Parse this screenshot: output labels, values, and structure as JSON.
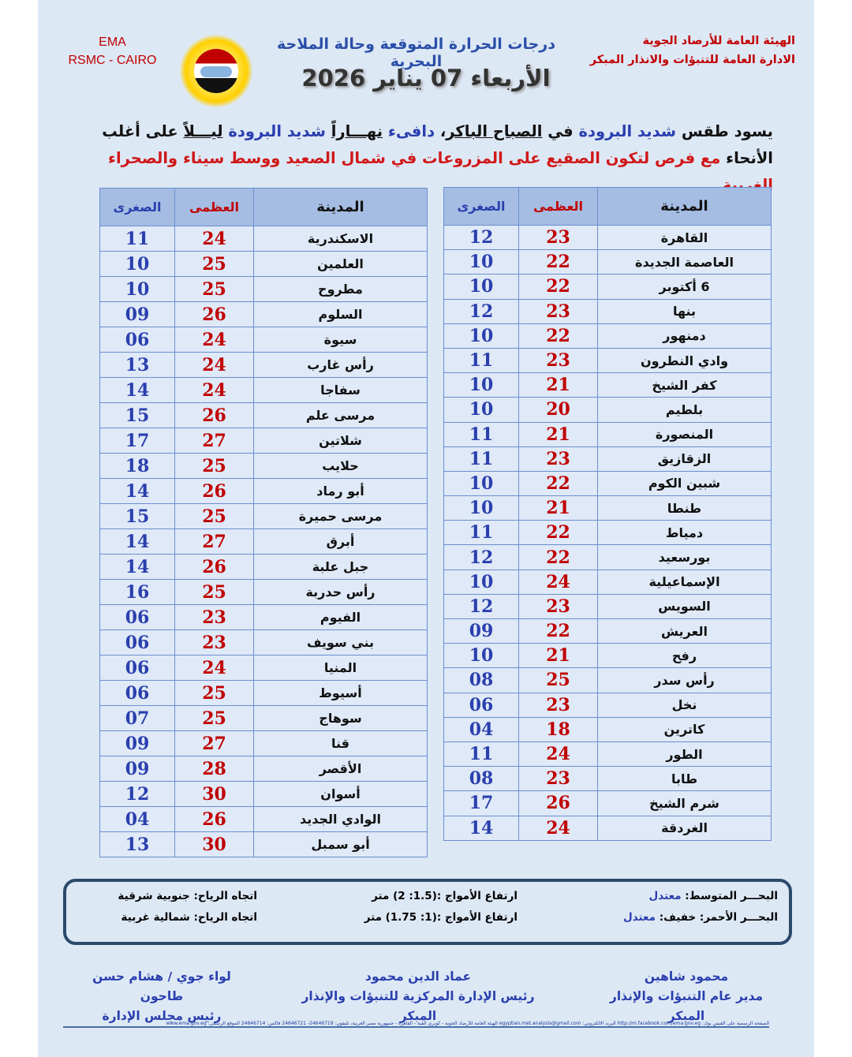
{
  "header": {
    "ema": "EMA",
    "rsmc": "RSMC - CAIRO",
    "org_line1": "الهيئة العامة للأرصاد الجوية",
    "org_line2": "الادارة العامة للتنبؤات والانذار المبكر",
    "title": "درجات الحرارة المتوقعة وحالة الملاحة البحرية",
    "date": "الأربعاء 07 يناير 2026"
  },
  "intro": {
    "segments": [
      {
        "text": "يسود طقس ",
        "style": ""
      },
      {
        "text": "شديد البرودة",
        "style": "blue"
      },
      {
        "text": " في ",
        "style": ""
      },
      {
        "text": "الصباح الباكر",
        "style": "u"
      },
      {
        "text": "، ",
        "style": ""
      },
      {
        "text": "دافىء",
        "style": "blue"
      },
      {
        "text": " ",
        "style": ""
      },
      {
        "text": "نهـــاراً",
        "style": "u"
      },
      {
        "text": " ",
        "style": ""
      },
      {
        "text": "شديد البرودة",
        "style": "blue"
      },
      {
        "text": " ",
        "style": ""
      },
      {
        "text": "ليـــلاً",
        "style": "u"
      },
      {
        "text": " على أغلب الأنحاء ",
        "style": ""
      },
      {
        "text": "مع فرص لتكون الصقيع على المزروعات في شمال الصعيد ووسط سيناء والصحراء الغربية.",
        "style": "red"
      }
    ]
  },
  "table_headers": {
    "city": "المدينة",
    "max": "العظمى",
    "min": "الصغرى"
  },
  "right_table": [
    [
      "القاهرة",
      "23",
      "12"
    ],
    [
      "العاصمة الجديدة",
      "22",
      "10"
    ],
    [
      "6 أكتوبر",
      "22",
      "10"
    ],
    [
      "بنها",
      "23",
      "12"
    ],
    [
      "دمنهور",
      "22",
      "10"
    ],
    [
      "وادي النطرون",
      "23",
      "11"
    ],
    [
      "كفر الشيخ",
      "21",
      "10"
    ],
    [
      "بلطيم",
      "20",
      "10"
    ],
    [
      "المنصورة",
      "21",
      "11"
    ],
    [
      "الزقازيق",
      "23",
      "11"
    ],
    [
      "شبين الكوم",
      "22",
      "10"
    ],
    [
      "طنطا",
      "21",
      "10"
    ],
    [
      "دمياط",
      "22",
      "11"
    ],
    [
      "بورسعيد",
      "22",
      "12"
    ],
    [
      "الإسماعيلية",
      "24",
      "10"
    ],
    [
      "السويس",
      "23",
      "12"
    ],
    [
      "العريش",
      "22",
      "09"
    ],
    [
      "رفح",
      "21",
      "10"
    ],
    [
      "رأس سدر",
      "25",
      "08"
    ],
    [
      "نخل",
      "23",
      "06"
    ],
    [
      "كاترين",
      "18",
      "04"
    ],
    [
      "الطور",
      "24",
      "11"
    ],
    [
      "طابا",
      "23",
      "08"
    ],
    [
      "شرم الشيخ",
      "26",
      "17"
    ],
    [
      "الغردقة",
      "24",
      "14"
    ]
  ],
  "left_table": [
    [
      "الاسكندرية",
      "24",
      "11"
    ],
    [
      "العلمين",
      "25",
      "10"
    ],
    [
      "مطروح",
      "25",
      "10"
    ],
    [
      "السلوم",
      "26",
      "09"
    ],
    [
      "سيوة",
      "24",
      "06"
    ],
    [
      "رأس غارب",
      "24",
      "13"
    ],
    [
      "سفاجا",
      "24",
      "14"
    ],
    [
      "مرسى علم",
      "26",
      "15"
    ],
    [
      "شلاتين",
      "27",
      "17"
    ],
    [
      "حلايب",
      "25",
      "18"
    ],
    [
      "أبو رماد",
      "26",
      "14"
    ],
    [
      "مرسى حميرة",
      "25",
      "15"
    ],
    [
      "أبرق",
      "27",
      "14"
    ],
    [
      "جبل علبة",
      "26",
      "14"
    ],
    [
      "رأس حدربة",
      "25",
      "16"
    ],
    [
      "الفيوم",
      "23",
      "06"
    ],
    [
      "بني سويف",
      "23",
      "06"
    ],
    [
      "المنيا",
      "24",
      "06"
    ],
    [
      "أسيوط",
      "25",
      "06"
    ],
    [
      "سوهاج",
      "25",
      "07"
    ],
    [
      "قنا",
      "27",
      "09"
    ],
    [
      "الأقصر",
      "28",
      "09"
    ],
    [
      "أسوان",
      "30",
      "12"
    ],
    [
      "الوادي الجديد",
      "26",
      "04"
    ],
    [
      "أبو سمبل",
      "30",
      "13"
    ]
  ],
  "sea": {
    "med": {
      "label": "البحـــر المتوسط: ",
      "state": "معتدل",
      "waves": "ارتفاع الأمواج :(1.5: 2) متر",
      "wind": "اتجاه الرياح: جنوبية شرقية"
    },
    "red": {
      "label": "البحـــر الأحمر: خفيف: ",
      "state": "معتدل",
      "waves": "ارتفاع الأمواج :(1: 1.75) متر",
      "wind": "اتجاه الرياح: شمالية غربية"
    }
  },
  "signatures": [
    {
      "name": "محمود شاهين",
      "role": "مدير عام التنبؤات والإنذار المبكر"
    },
    {
      "name": "عماد الدين محمود",
      "role": "رئيس الإدارة المركزية للتنبؤات والإنذار المبكر"
    },
    {
      "name": "لواء جوي / هشام حسن طاحون",
      "role": "رئيس مجلس الإدارة"
    }
  ],
  "footer": "الصفحة الرسمية على الفيس بوك: http://m.facebook.com/ema.gov.eg البريد الالكتروني: egyptian.met.analysis@gmail.com الهيئة العامة للأرصاد الجوية - كوبري القبة - القاهرة - جمهورية مصر العربية، تليفون: 24646719- 24646721 فاكس: 24646714 الموقع الرسمي: www.ema.gov.eg",
  "colors": {
    "background": "#dde8f5",
    "header_row": "#a5bde3",
    "max_temp": "#c00000",
    "min_temp": "#2a3fae"
  }
}
